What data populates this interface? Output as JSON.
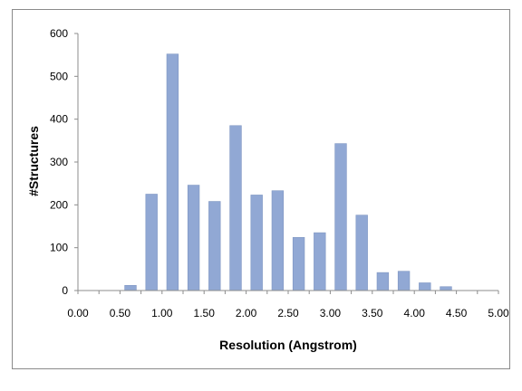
{
  "chart_data": {
    "type": "bar",
    "title": "",
    "xlabel": "Resolution (Angstrom)",
    "ylabel": "#Structures",
    "ylim": [
      0,
      600
    ],
    "xlim": [
      0,
      5
    ],
    "y_ticks": [
      0,
      100,
      200,
      300,
      400,
      500,
      600
    ],
    "x_tick_labels": [
      "0.00",
      "0.50",
      "1.00",
      "1.50",
      "2.00",
      "2.50",
      "3.00",
      "3.50",
      "4.00",
      "4.50",
      "5.00"
    ],
    "bar_color": "#91a8d4",
    "grid": false,
    "legend": "none",
    "x": [
      0.75,
      1.0,
      1.25,
      1.5,
      1.75,
      2.0,
      2.25,
      2.5,
      2.75,
      3.0,
      3.25,
      3.5,
      3.75,
      4.0,
      4.25,
      4.5
    ],
    "values": [
      12,
      225,
      552,
      246,
      208,
      385,
      223,
      233,
      124,
      135,
      343,
      176,
      42,
      45,
      18,
      9
    ]
  }
}
